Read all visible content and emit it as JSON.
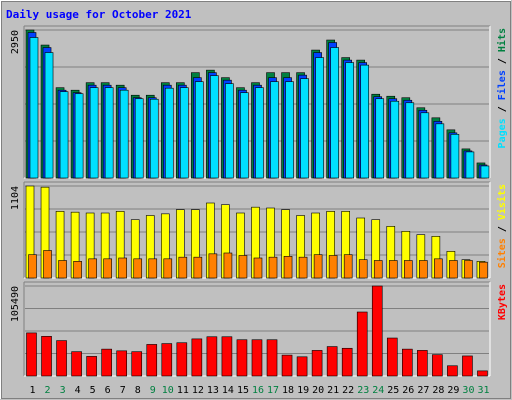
{
  "chart_data": {
    "type": "bar",
    "title": "Daily usage for October 2021",
    "days": [
      "1",
      "2",
      "3",
      "4",
      "5",
      "6",
      "7",
      "8",
      "9",
      "10",
      "11",
      "12",
      "13",
      "14",
      "15",
      "16",
      "17",
      "18",
      "19",
      "20",
      "21",
      "22",
      "23",
      "24",
      "25",
      "26",
      "27",
      "28",
      "29",
      "30",
      "31"
    ],
    "weekend_days": [
      "2",
      "3",
      "9",
      "10",
      "16",
      "17",
      "23",
      "24",
      "30",
      "31"
    ],
    "colors": {
      "background": "#c0c0c0",
      "title": "#0000ff",
      "hits": "#008040",
      "files": "#0040ff",
      "pages": "#00e0ff",
      "visits": "#ffff00",
      "sites": "#ff8000",
      "kbytes": "#ff0000",
      "weekend_label": "#008040",
      "weekday_label": "#000000"
    },
    "panels": [
      {
        "id": "hits-panel",
        "max_label": "2950",
        "ymax": 2950,
        "right_labels": [
          {
            "text": "Pages",
            "color": "#00e0ff"
          },
          {
            "text": " / ",
            "color": "#000000"
          },
          {
            "text": "Files",
            "color": "#0040ff"
          },
          {
            "text": " / ",
            "color": "#000000"
          },
          {
            "text": "Hits",
            "color": "#008040"
          }
        ],
        "series": [
          {
            "name": "Hits",
            "color": "#008040",
            "values": [
              2950,
              2650,
              1800,
              1750,
              1900,
              1900,
              1850,
              1650,
              1650,
              1900,
              1900,
              2100,
              2150,
              2000,
              1800,
              1900,
              2100,
              2100,
              2100,
              2550,
              2750,
              2400,
              2350,
              1670,
              1630,
              1600,
              1400,
              1200,
              960,
              580,
              300
            ]
          },
          {
            "name": "Files",
            "color": "#0040ff",
            "values": [
              2900,
              2600,
              1750,
              1700,
              1850,
              1850,
              1800,
              1600,
              1600,
              1850,
              1850,
              2000,
              2100,
              1950,
              1750,
              1850,
              2000,
              2000,
              2050,
              2500,
              2700,
              2350,
              2300,
              1620,
              1580,
              1550,
              1350,
              1130,
              900,
              540,
              260
            ]
          },
          {
            "name": "Pages",
            "color": "#00e0ff",
            "values": [
              2800,
              2500,
              1720,
              1680,
              1800,
              1800,
              1750,
              1580,
              1570,
              1790,
              1800,
              1920,
              2040,
              1880,
              1700,
              1800,
              1920,
              1920,
              1980,
              2400,
              2600,
              2300,
              2250,
              1580,
              1530,
              1500,
              1300,
              1080,
              870,
              520,
              240
            ]
          }
        ]
      },
      {
        "id": "visits-panel",
        "max_label": "1104",
        "ymax": 1104,
        "right_labels": [
          {
            "text": "Sites",
            "color": "#ff8000"
          },
          {
            "text": " / ",
            "color": "#000000"
          },
          {
            "text": "Visits",
            "color": "#ffff00"
          }
        ],
        "series": [
          {
            "name": "Visits",
            "color": "#ffff00",
            "values": [
              1104,
              1090,
              800,
              790,
              780,
              780,
              800,
              700,
              750,
              770,
              820,
              820,
              900,
              880,
              780,
              850,
              840,
              820,
              750,
              780,
              800,
              800,
              720,
              700,
              620,
              560,
              520,
              500,
              320,
              220,
              200
            ]
          },
          {
            "name": "Sites",
            "color": "#ff8000",
            "values": [
              280,
              330,
              210,
              200,
              230,
              230,
              240,
              230,
              230,
              230,
              250,
              250,
              290,
              300,
              270,
              240,
              250,
              260,
              250,
              280,
              270,
              280,
              220,
              210,
              210,
              210,
              210,
              230,
              210,
              210,
              190
            ]
          }
        ]
      },
      {
        "id": "kbytes-panel",
        "max_label": "105490",
        "ymax": 105490,
        "right_labels": [
          {
            "text": "KBytes",
            "color": "#ff0000"
          }
        ],
        "series": [
          {
            "name": "KBytes",
            "color": "#ff0000",
            "values": [
              50500,
              46500,
              41500,
              28500,
              23000,
              31500,
              29500,
              28500,
              37000,
              38000,
              39000,
              43500,
              46000,
              46000,
              42500,
              42500,
              42500,
              24500,
              22500,
              30000,
              34500,
              32500,
              75000,
              105490,
              44500,
              31500,
              30000,
              25000,
              12000,
              23500,
              6000
            ]
          }
        ]
      }
    ]
  }
}
